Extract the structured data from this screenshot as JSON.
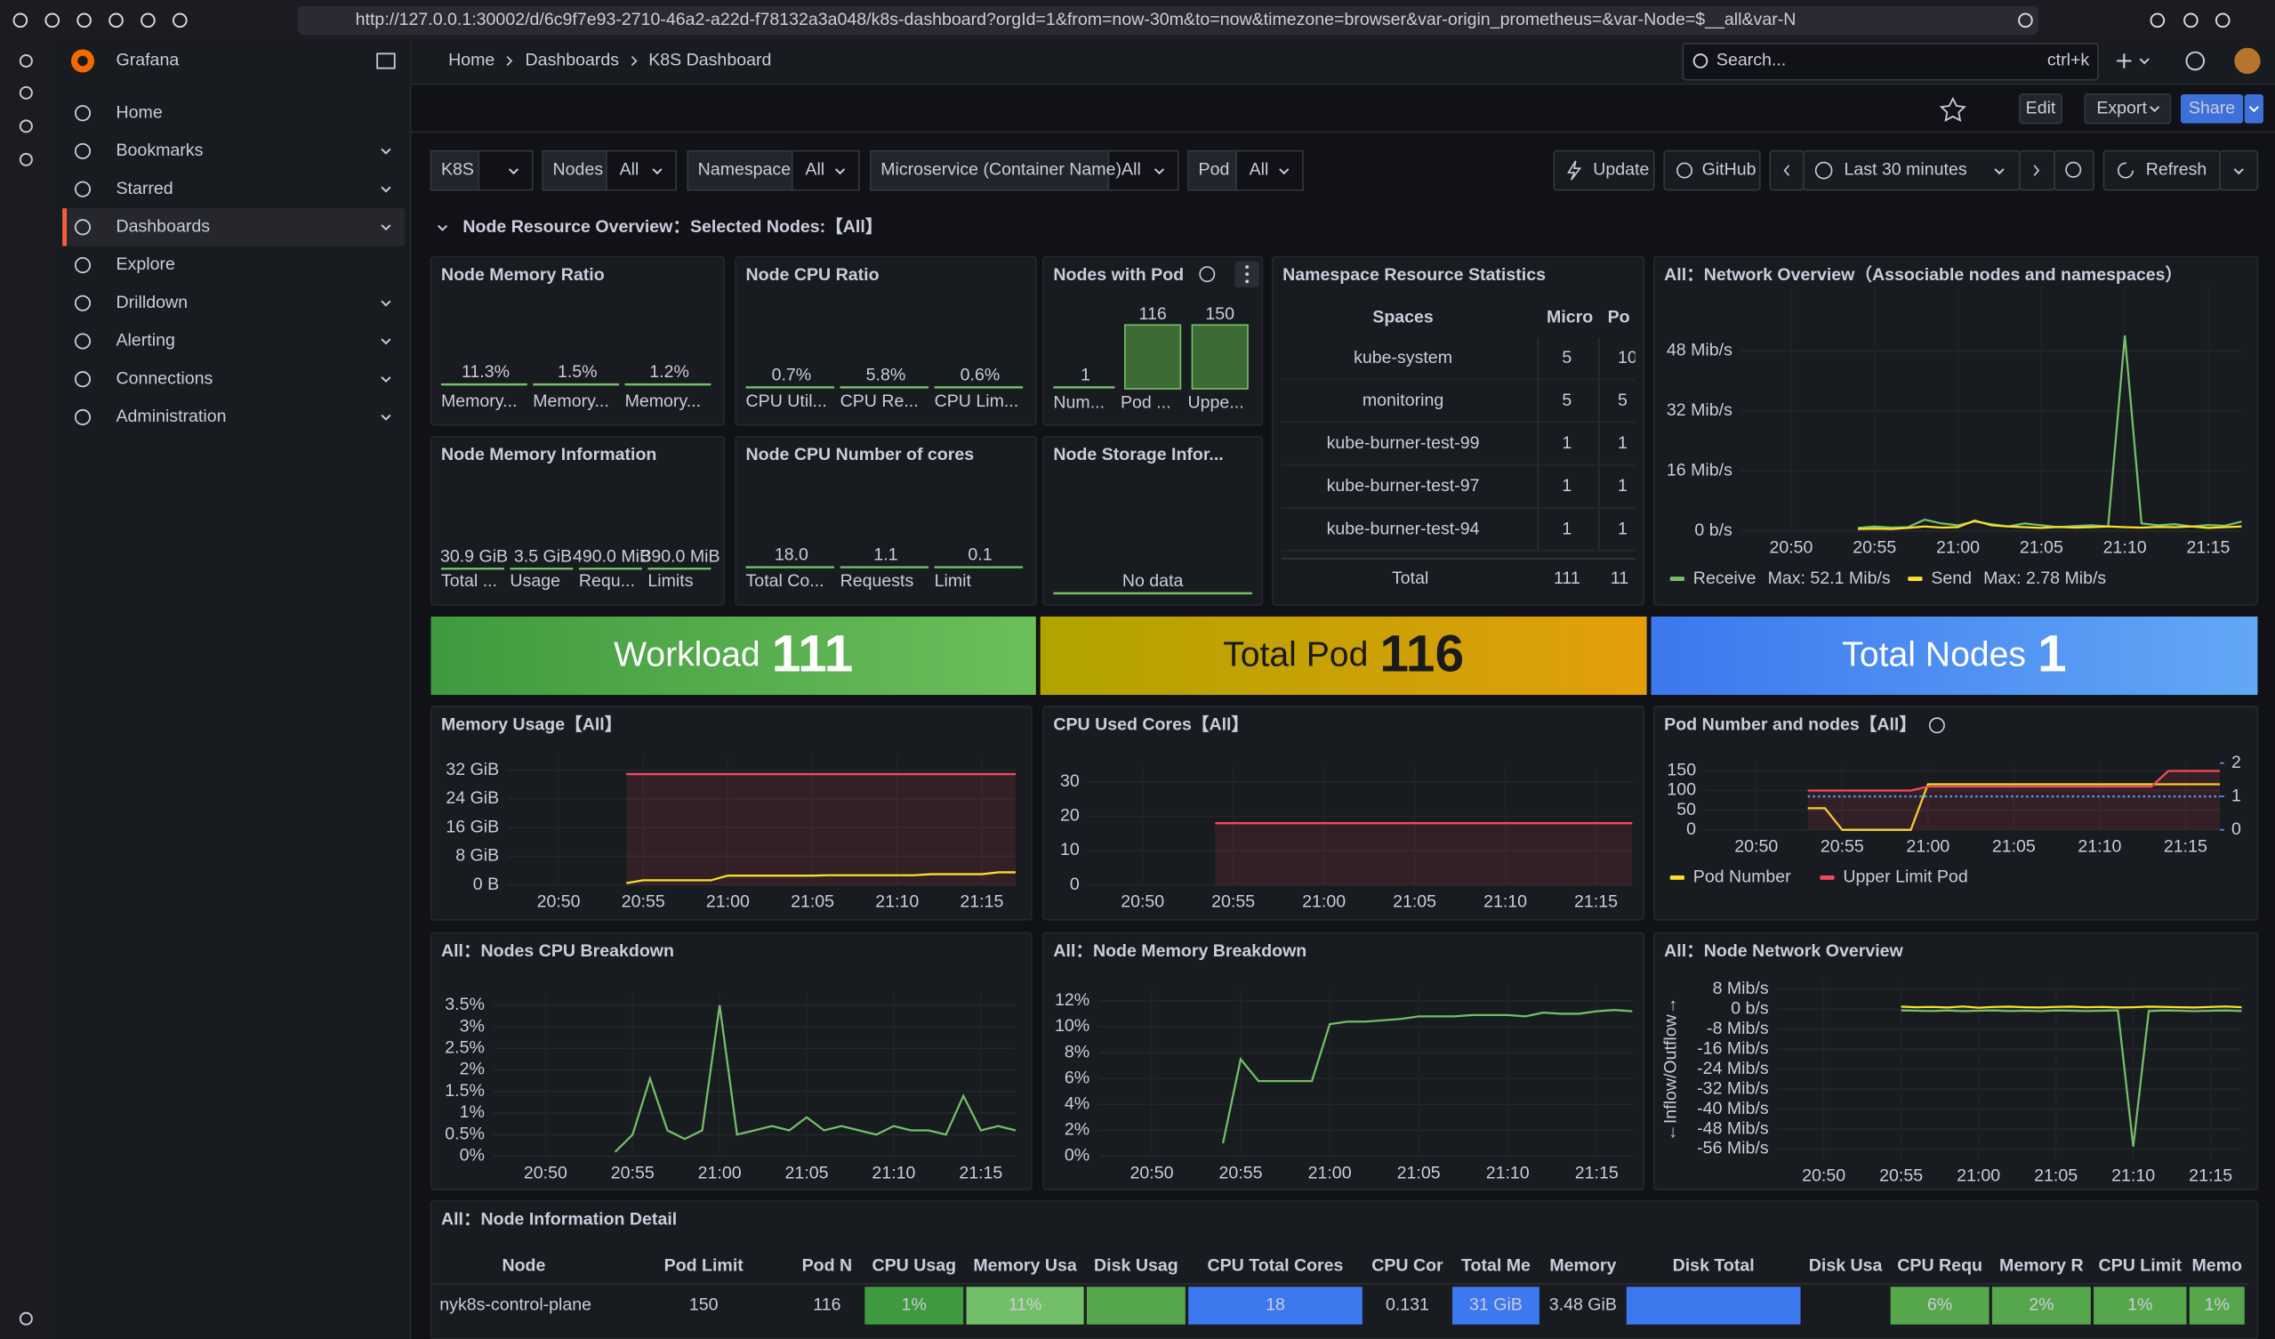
{
  "browser": {
    "url": "http://127.0.0.1:30002/d/6c9f7e93-2710-46a2-a22d-f78132a3a048/k8s-dashboard?orgId=1&from=now-30m&to=now&timezone=browser&var-origin_prometheus=&var-Node=$__all&var-N"
  },
  "sidebar": {
    "app": "Grafana",
    "nav": [
      "Home",
      "Bookmarks",
      "Starred",
      "Dashboards",
      "Explore",
      "Drilldown",
      "Alerting",
      "Connections",
      "Administration"
    ]
  },
  "header": {
    "breadcrumbs": [
      "Home",
      "Dashboards",
      "K8S Dashboard"
    ],
    "search": "Search...",
    "shortcut": "ctrl+k"
  },
  "toolbar": {
    "edit": "Edit",
    "export": "Export",
    "share": "Share"
  },
  "variables": [
    {
      "label": "K8S"
    },
    {
      "label": "Nodes",
      "value": "All"
    },
    {
      "label": "Namespace",
      "value": "All"
    },
    {
      "label": "Microservice (Container Name)",
      "value": "All"
    },
    {
      "label": "Pod",
      "value": "All"
    }
  ],
  "controls": {
    "update": "Update",
    "github": "GitHub",
    "time_range": "Last 30 minutes",
    "refresh": "Refresh"
  },
  "row_title": "Node Resource Overview：Selected Nodes:【All】",
  "stat_panels": [
    {
      "title": "Node Memory Ratio",
      "stats": [
        {
          "value": "11.3%",
          "label": "Memory..."
        },
        {
          "value": "1.5%",
          "label": "Memory..."
        },
        {
          "value": "1.2%",
          "label": "Memory..."
        }
      ]
    },
    {
      "title": "Node CPU Ratio",
      "stats": [
        {
          "value": "0.7%",
          "label": "CPU Util..."
        },
        {
          "value": "5.8%",
          "label": "CPU Re..."
        },
        {
          "value": "0.6%",
          "label": "CPU Lim..."
        }
      ]
    },
    {
      "title": "Nodes with Pod",
      "stats": [
        {
          "value": "1",
          "label": "Num..."
        },
        {
          "value": "116",
          "label": "Pod ..."
        },
        {
          "value": "150",
          "label": "Uppe..."
        }
      ]
    },
    {
      "title": "Node Memory Information",
      "stats": [
        {
          "value": "30.9 GiB",
          "label": "Total ..."
        },
        {
          "value": "3.5 GiB",
          "label": "Usage"
        },
        {
          "value": "490.0 MiB",
          "label": "Requ..."
        },
        {
          "value": "390.0 MiB",
          "label": "Limits"
        }
      ]
    },
    {
      "title": "Node CPU Number of cores",
      "stats": [
        {
          "value": "18.0",
          "label": "Total Co..."
        },
        {
          "value": "1.1",
          "label": "Requests"
        },
        {
          "value": "0.1",
          "label": "Limit"
        }
      ]
    },
    {
      "title": "Node Storage Infor...",
      "no_data": "No data"
    }
  ],
  "namespace_table": {
    "title": "Namespace Resource Statistics",
    "columns": [
      "Spaces",
      "Micro",
      "Po"
    ],
    "rows": [
      [
        "kube-system",
        5,
        10
      ],
      [
        "monitoring",
        5,
        5
      ],
      [
        "kube-burner-test-99",
        1,
        1
      ],
      [
        "kube-burner-test-97",
        1,
        1
      ],
      [
        "kube-burner-test-94",
        1,
        1
      ]
    ],
    "footer": [
      "Total",
      111,
      11
    ]
  },
  "big_stats": [
    {
      "label": "Workload",
      "value": 111
    },
    {
      "label": "Total Pod",
      "value": 116
    },
    {
      "label": "Total Nodes",
      "value": 1
    }
  ],
  "charts": [
    {
      "type": "line",
      "title": "All：Network Overview（Associable nodes and namespaces）",
      "ylim": [
        0,
        65
      ],
      "yticks": [
        {
          "value": 0,
          "label": "0 b/s"
        },
        {
          "value": 16,
          "label": "16 Mib/s"
        },
        {
          "value": 32,
          "label": "32 Mib/s"
        },
        {
          "value": 48,
          "label": "48 Mib/s"
        }
      ],
      "xticks": [
        "20:50",
        "20:55",
        "21:00",
        "21:05",
        "21:10",
        "21:15"
      ],
      "series": [
        {
          "name": "Receive",
          "max_label": "Max: 52.1 Mib/s",
          "color": "#73bf69",
          "values": [
            null,
            null,
            null,
            null,
            null,
            null,
            null,
            0.8,
            1.2,
            0.9,
            1.0,
            3,
            2,
            1.5,
            2.5,
            1.8,
            1.2,
            2,
            1.5,
            1.0,
            1.3,
            1.5,
            1.2,
            52.1,
            2,
            1.5,
            1.8,
            1.2,
            1.6,
            1.4,
            2.5
          ]
        },
        {
          "name": "Send",
          "max_label": "Max: 2.78 Mib/s",
          "color": "#fade2a",
          "values": [
            null,
            null,
            null,
            null,
            null,
            null,
            null,
            0.5,
            0.6,
            0.5,
            0.8,
            1.2,
            0.9,
            1.0,
            2.78,
            1.5,
            1.2,
            1.0,
            0.8,
            1.1,
            0.9,
            1.0,
            1.2,
            1.0,
            0.9,
            1.1,
            1.0,
            1.2,
            0.8,
            1.0,
            1.2
          ]
        }
      ]
    },
    {
      "type": "line",
      "title": "Memory Usage【All】",
      "ylim": [
        0,
        36
      ],
      "yticks": [
        {
          "value": 0,
          "label": "0 B"
        },
        {
          "value": 8,
          "label": "8 GiB"
        },
        {
          "value": 16,
          "label": "16 GiB"
        },
        {
          "value": 24,
          "label": "24 GiB"
        },
        {
          "value": 32,
          "label": "32 GiB"
        }
      ],
      "xticks": [
        "20:50",
        "20:55",
        "21:00",
        "21:05",
        "21:10",
        "21:15"
      ],
      "series": [
        {
          "color": "#f2495c",
          "fill": true,
          "values": [
            null,
            null,
            null,
            null,
            null,
            null,
            null,
            30.9,
            30.9,
            30.9,
            30.9,
            30.9,
            30.9,
            30.9,
            30.9,
            30.9,
            30.9,
            30.9,
            30.9,
            30.9,
            30.9,
            30.9,
            30.9,
            30.9,
            30.9,
            30.9,
            30.9,
            30.9,
            30.9,
            30.9,
            30.9
          ]
        },
        {
          "color": "#fade2a",
          "values": [
            null,
            null,
            null,
            null,
            null,
            null,
            null,
            0.5,
            1.3,
            1.3,
            1.3,
            1.3,
            1.3,
            2.6,
            2.6,
            2.6,
            2.6,
            2.6,
            2.6,
            2.7,
            2.7,
            2.7,
            2.7,
            2.7,
            2.7,
            3.0,
            3.0,
            3.0,
            3.0,
            3.5,
            3.5
          ]
        }
      ]
    },
    {
      "type": "line",
      "title": "CPU Used Cores【All】",
      "ylim": [
        0,
        34
      ],
      "yticks": [
        0,
        10,
        20,
        30
      ],
      "xticks": [
        "20:50",
        "20:55",
        "21:00",
        "21:05",
        "21:10",
        "21:15"
      ],
      "series": [
        {
          "color": "#f2495c",
          "fill": true,
          "values": [
            null,
            null,
            null,
            null,
            null,
            null,
            null,
            18,
            18,
            18,
            18,
            18,
            18,
            18,
            18,
            18,
            18,
            18,
            18,
            18,
            18,
            18,
            18,
            18,
            18,
            18,
            18,
            18,
            18,
            18,
            18
          ]
        }
      ]
    },
    {
      "type": "line",
      "title": "Pod Number and nodes【All】",
      "ylim": [
        0,
        170
      ],
      "yticks": [
        0,
        50,
        100,
        150
      ],
      "y2lim": [
        0,
        2
      ],
      "y2ticks": [
        0,
        1,
        2
      ],
      "xticks": [
        "20:50",
        "20:55",
        "21:00",
        "21:05",
        "21:10",
        "21:15"
      ],
      "series": [
        {
          "name": "Pod Number",
          "color": "#fade2a",
          "values": [
            null,
            null,
            null,
            null,
            null,
            null,
            55,
            55,
            0,
            0,
            0,
            0,
            0,
            116,
            116,
            116,
            116,
            116,
            116,
            116,
            116,
            116,
            116,
            116,
            116,
            116,
            116,
            116,
            116,
            116,
            116
          ]
        },
        {
          "name": "Upper Limit Pod",
          "color": "#f2495c",
          "fill": true,
          "values": [
            null,
            null,
            null,
            null,
            null,
            null,
            100,
            100,
            100,
            100,
            100,
            100,
            100,
            110,
            110,
            110,
            110,
            110,
            110,
            110,
            110,
            110,
            110,
            110,
            110,
            110,
            110,
            150,
            150,
            150,
            150
          ]
        },
        {
          "color": "#5794f2",
          "axis": "y2",
          "dashed": true,
          "values": [
            null,
            null,
            null,
            null,
            null,
            null,
            1,
            1,
            1,
            1,
            1,
            1,
            1,
            1,
            1,
            1,
            1,
            1,
            1,
            1,
            1,
            1,
            1,
            1,
            1,
            1,
            1,
            1,
            1,
            1,
            1
          ]
        }
      ]
    },
    {
      "type": "line",
      "title": "All：Nodes CPU Breakdown",
      "ylim": [
        0,
        3.8
      ],
      "yticks": [
        {
          "value": 0,
          "label": "0%"
        },
        {
          "value": 0.5,
          "label": "0.5%"
        },
        {
          "value": 1,
          "label": "1%"
        },
        {
          "value": 1.5,
          "label": "1.5%"
        },
        {
          "value": 2,
          "label": "2%"
        },
        {
          "value": 2.5,
          "label": "2.5%"
        },
        {
          "value": 3,
          "label": "3%"
        },
        {
          "value": 3.5,
          "label": "3.5%"
        }
      ],
      "xticks": [
        "20:50",
        "20:55",
        "21:00",
        "21:05",
        "21:10",
        "21:15"
      ],
      "series": [
        {
          "color": "#73bf69",
          "values": [
            null,
            null,
            null,
            null,
            null,
            null,
            null,
            0.1,
            0.5,
            1.8,
            0.6,
            0.4,
            0.6,
            3.5,
            0.5,
            0.6,
            0.7,
            0.6,
            0.9,
            0.6,
            0.7,
            0.6,
            0.5,
            0.7,
            0.6,
            0.6,
            0.5,
            1.4,
            0.6,
            0.7,
            0.6
          ]
        }
      ]
    },
    {
      "type": "line",
      "title": "All：Node Memory Breakdown",
      "ylim": [
        0,
        13
      ],
      "yticks": [
        {
          "value": 0,
          "label": "0%"
        },
        {
          "value": 2,
          "label": "2%"
        },
        {
          "value": 4,
          "label": "4%"
        },
        {
          "value": 6,
          "label": "6%"
        },
        {
          "value": 8,
          "label": "8%"
        },
        {
          "value": 10,
          "label": "10%"
        },
        {
          "value": 12,
          "label": "12%"
        }
      ],
      "xticks": [
        "20:50",
        "20:55",
        "21:00",
        "21:05",
        "21:10",
        "21:15"
      ],
      "series": [
        {
          "color": "#73bf69",
          "values": [
            null,
            null,
            null,
            null,
            null,
            null,
            null,
            1,
            7.5,
            5.8,
            5.8,
            5.8,
            5.8,
            10.2,
            10.4,
            10.4,
            10.5,
            10.6,
            10.8,
            10.8,
            10.8,
            10.9,
            10.9,
            10.9,
            10.8,
            11.1,
            11.0,
            11.0,
            11.2,
            11.3,
            11.2
          ]
        }
      ]
    },
    {
      "type": "line",
      "title": "All：Node Network Overview",
      "ylabel": "←Inflow/Outflow→",
      "ylim": [
        -60,
        12
      ],
      "yticks": [
        {
          "value": 8,
          "label": "8 Mib/s"
        },
        {
          "value": 0,
          "label": "0 b/s"
        },
        {
          "value": -8,
          "label": "-8 Mib/s"
        },
        {
          "value": -16,
          "label": "-16 Mib/s"
        },
        {
          "value": -24,
          "label": "-24 Mib/s"
        },
        {
          "value": -32,
          "label": "-32 Mib/s"
        },
        {
          "value": -40,
          "label": "-40 Mib/s"
        },
        {
          "value": -48,
          "label": "-48 Mib/s"
        },
        {
          "value": -56,
          "label": "-56 Mib/s"
        }
      ],
      "xticks": [
        "20:50",
        "20:55",
        "21:00",
        "21:05",
        "21:10",
        "21:15"
      ],
      "series": [
        {
          "color": "#fade2a",
          "values": [
            null,
            null,
            null,
            null,
            null,
            null,
            null,
            null,
            1,
            0.8,
            0.9,
            0.7,
            1.1,
            0.6,
            0.9,
            1.0,
            0.8,
            0.7,
            0.9,
            1.0,
            0.8,
            0.9,
            0.7,
            0.8,
            1.0,
            0.9,
            0.8,
            0.7,
            0.9,
            1.1,
            0.8
          ]
        },
        {
          "color": "#73bf69",
          "values": [
            null,
            null,
            null,
            null,
            null,
            null,
            null,
            null,
            -0.5,
            -0.6,
            -0.7,
            -0.5,
            -0.8,
            -0.6,
            -0.5,
            -0.7,
            -0.6,
            -0.8,
            -0.5,
            -0.6,
            -0.7,
            -0.6,
            -0.5,
            -55,
            -0.7,
            -0.5,
            -0.6,
            -0.8,
            -0.6,
            -0.5,
            -0.7
          ]
        }
      ]
    }
  ],
  "detail_table": {
    "title": "All：Node Information Detail",
    "columns": [
      "Node",
      "Pod Limit",
      "Pod N",
      "CPU Usag",
      "Memory Usa",
      "Disk Usag",
      "CPU Total Cores",
      "CPU Cor",
      "Total Me",
      "Memory",
      "Disk Total",
      "Disk Usa",
      "CPU Requ",
      "Memory R",
      "CPU Limit",
      "Memo"
    ],
    "rows": [
      [
        "nyk8s-control-plane",
        150,
        116,
        "1%",
        "11%",
        null,
        18,
        0.131,
        "31 GiB",
        "3.48 GiB",
        null,
        null,
        "6%",
        "2%",
        "1%",
        "1%"
      ]
    ]
  }
}
